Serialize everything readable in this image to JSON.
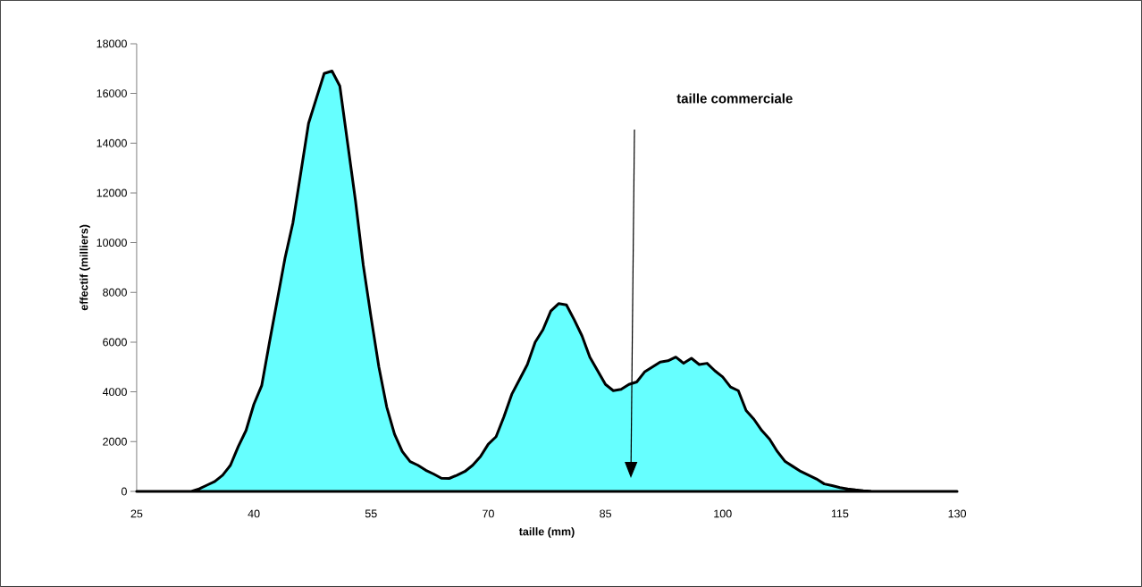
{
  "chart_data": {
    "type": "area",
    "xlabel": "taille (mm)",
    "ylabel": "effectif (milliers)",
    "x": [
      25,
      26,
      27,
      28,
      29,
      30,
      31,
      32,
      33,
      34,
      35,
      36,
      37,
      38,
      39,
      40,
      41,
      42,
      43,
      44,
      45,
      46,
      47,
      48,
      49,
      50,
      51,
      52,
      53,
      54,
      55,
      56,
      57,
      58,
      59,
      60,
      61,
      62,
      63,
      64,
      65,
      66,
      67,
      68,
      69,
      70,
      71,
      72,
      73,
      74,
      75,
      76,
      77,
      78,
      79,
      80,
      81,
      82,
      83,
      84,
      85,
      86,
      87,
      88,
      89,
      90,
      91,
      92,
      93,
      94,
      95,
      96,
      97,
      98,
      99,
      100,
      101,
      102,
      103,
      104,
      105,
      106,
      107,
      108,
      109,
      110,
      111,
      112,
      113,
      114,
      115,
      116,
      117,
      118,
      119,
      120,
      121,
      122,
      123,
      124,
      125,
      126,
      127,
      128,
      129,
      130
    ],
    "values": [
      0,
      0,
      0,
      0,
      0,
      0,
      0,
      0,
      100,
      250,
      400,
      650,
      1050,
      1800,
      2450,
      3500,
      4250,
      6000,
      7700,
      9400,
      10800,
      12800,
      14800,
      15800,
      16800,
      16900,
      16300,
      14000,
      11700,
      9100,
      7000,
      5000,
      3400,
      2300,
      1600,
      1200,
      1050,
      850,
      700,
      530,
      520,
      650,
      800,
      1050,
      1400,
      1900,
      2200,
      3000,
      3900,
      4500,
      5100,
      6000,
      6500,
      7250,
      7550,
      7500,
      6900,
      6250,
      5400,
      4850,
      4300,
      4050,
      4100,
      4300,
      4400,
      4800,
      5000,
      5200,
      5250,
      5400,
      5150,
      5350,
      5100,
      5150,
      4850,
      4600,
      4200,
      4050,
      3250,
      2900,
      2450,
      2100,
      1600,
      1200,
      1000,
      800,
      650,
      500,
      300,
      230,
      150,
      100,
      60,
      30,
      10,
      0,
      0,
      0,
      0,
      0,
      0,
      0,
      0,
      0,
      0,
      0
    ],
    "color": "#66ffff",
    "xlim": [
      25,
      130
    ],
    "ylim": [
      0,
      18000
    ],
    "xticks": [
      25,
      40,
      55,
      70,
      85,
      100,
      115,
      130
    ],
    "yticks": [
      0,
      2000,
      4000,
      6000,
      8000,
      10000,
      12000,
      14000,
      16000,
      18000
    ],
    "annotations": [
      "taille commerciale"
    ]
  }
}
